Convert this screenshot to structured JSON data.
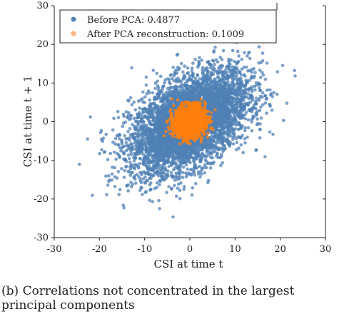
{
  "chart_data": {
    "type": "scatter",
    "xlabel": "CSI at time t",
    "ylabel": "CSI at time t + 1",
    "xlim": [
      -30,
      30
    ],
    "ylim": [
      -30,
      30
    ],
    "xticks": [
      "-30",
      "-20",
      "-10",
      "0",
      "10",
      "20",
      "30"
    ],
    "yticks": [
      "30",
      "20",
      "10",
      "0",
      "-10",
      "-20",
      "-30"
    ],
    "legend_position": "top-left",
    "grid": false,
    "series": [
      {
        "name": "Before PCA: 0.4877",
        "color": "#4f80b5",
        "correlation": 0.4877,
        "distribution": {
          "center": [
            0,
            0
          ],
          "std_x": 6.5,
          "std_y": 6.5,
          "extent": [
            -25,
            25
          ]
        }
      },
      {
        "name": "After PCA reconstruction: 0.1009",
        "color": "#ff7f0e",
        "correlation": 0.1009,
        "distribution": {
          "center": [
            0,
            0
          ],
          "std_x": 1.7,
          "std_y": 2.0,
          "extent": [
            -8,
            8
          ]
        }
      }
    ]
  },
  "caption": {
    "tag": "(b)",
    "line1": "Correlations not concentrated in the largest",
    "line2": "principal components"
  }
}
